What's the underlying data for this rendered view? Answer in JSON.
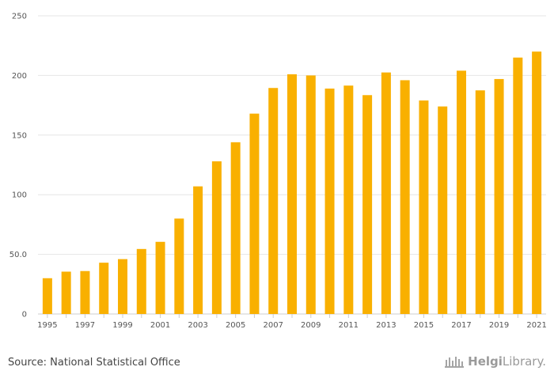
{
  "chart_data": {
    "type": "bar",
    "title": "",
    "xlabel": "",
    "ylabel": "",
    "categories": [
      "1995",
      "1996",
      "1997",
      "1998",
      "1999",
      "2000",
      "2001",
      "2002",
      "2003",
      "2004",
      "2005",
      "2006",
      "2007",
      "2008",
      "2009",
      "2010",
      "2011",
      "2012",
      "2013",
      "2014",
      "2015",
      "2016",
      "2017",
      "2018",
      "2019",
      "2020",
      "2021"
    ],
    "values": [
      30,
      35.5,
      36,
      43,
      46,
      54.5,
      60.5,
      80,
      107,
      128,
      144,
      168,
      189.5,
      201,
      200,
      189,
      191.5,
      183.5,
      202.5,
      196,
      179,
      174,
      204,
      187.5,
      197,
      215,
      220
    ],
    "x_tick_labels": [
      "1995",
      "1997",
      "1999",
      "2001",
      "2003",
      "2005",
      "2007",
      "2009",
      "2011",
      "2013",
      "2015",
      "2017",
      "2019",
      "2021"
    ],
    "y_ticks": [
      0,
      50,
      100,
      150,
      200,
      250
    ],
    "y_tick_labels": [
      "0",
      "50.0",
      "100",
      "150",
      "200",
      "250"
    ],
    "ylim": [
      0,
      250
    ],
    "grid": true,
    "colors": {
      "bar": "#f9b000",
      "grid": "#e6e6e6",
      "axis": "#cccccc"
    }
  },
  "footer": {
    "source": "Source: National Statistical Office",
    "brand_name": "Helgi",
    "brand_suffix": "Library",
    "brand_dot": "."
  }
}
